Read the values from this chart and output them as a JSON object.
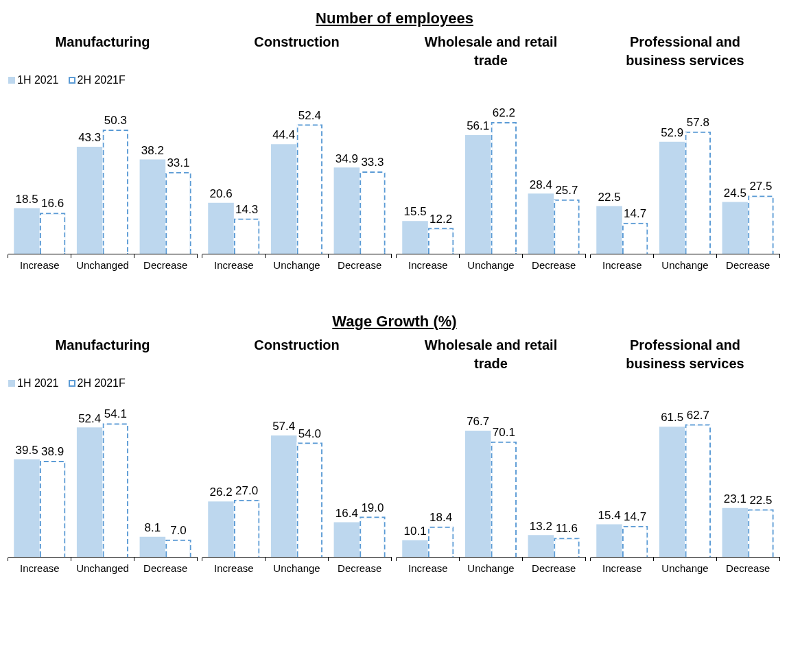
{
  "chart_data": [
    {
      "type": "other",
      "title": "Number of employees"
    },
    {
      "type": "bar",
      "title": "Manufacturing",
      "categories": [
        "Increase",
        "Unchanged",
        "Decrease"
      ],
      "legend": "top left",
      "series": [
        {
          "name": "1H 2021",
          "color": "#bdd7ee",
          "values": [
            18.5,
            43.3,
            38.2
          ],
          "value_labels": [
            "18.5",
            "43.3",
            "38.2"
          ]
        },
        {
          "name": "2H 2021F",
          "color": "#5b9bd5",
          "line_style": "dashed",
          "values": [
            16.6,
            50.3,
            33.1
          ],
          "value_labels": [
            "16.6",
            "50.3",
            "33.1"
          ]
        }
      ]
    },
    {
      "type": "bar",
      "title": "Construction",
      "categories": [
        "Increase",
        "Unchange",
        "Decrease"
      ],
      "series": [
        {
          "color": "#bdd7ee",
          "values": [
            20.6,
            44.4,
            34.9
          ],
          "value_labels": [
            "20.6",
            "44.4",
            "34.9"
          ]
        },
        {
          "color": "#5b9bd5",
          "line_style": "dashed",
          "values": [
            14.3,
            52.4,
            33.3
          ],
          "value_labels": [
            "14.3",
            "52.4",
            "33.3"
          ]
        }
      ]
    },
    {
      "type": "bar",
      "title": "Wholesale and retail trade",
      "categories": [
        "Increase",
        "Unchange",
        "Decrease"
      ],
      "series": [
        {
          "color": "#bdd7ee",
          "values": [
            15.5,
            56.1,
            28.4
          ],
          "value_labels": [
            "15.5",
            "56.1",
            "28.4"
          ]
        },
        {
          "color": "#5b9bd5",
          "line_style": "dashed",
          "values": [
            12.2,
            62.2,
            25.7
          ],
          "value_labels": [
            "12.2",
            "62.2",
            "25.7"
          ]
        }
      ]
    },
    {
      "type": "bar",
      "title": "Professional and business services",
      "categories": [
        "Increase",
        "Unchange",
        "Decrease"
      ],
      "series": [
        {
          "color": "#bdd7ee",
          "values": [
            22.5,
            52.9,
            24.5
          ],
          "value_labels": [
            "22.5",
            "52.9",
            "24.5"
          ]
        },
        {
          "color": "#5b9bd5",
          "line_style": "dashed",
          "values": [
            14.7,
            57.8,
            27.5
          ],
          "value_labels": [
            "14.7",
            "57.8",
            "27.5"
          ]
        }
      ]
    },
    {
      "type": "other",
      "title": "Wage Growth (%)"
    },
    {
      "type": "bar",
      "title": "Manufacturing",
      "categories": [
        "Increase",
        "Unchanged",
        "Decrease"
      ],
      "legend": "top left",
      "series": [
        {
          "name": "1H 2021",
          "color": "#bdd7ee",
          "values": [
            39.5,
            52.4,
            8.1
          ],
          "value_labels": [
            "39.5",
            "52.4",
            "8.1"
          ]
        },
        {
          "name": "2H 2021F",
          "color": "#5b9bd5",
          "line_style": "dashed",
          "values": [
            38.9,
            54.1,
            7.0
          ],
          "value_labels": [
            "38.9",
            "54.1",
            "7.0"
          ]
        }
      ]
    },
    {
      "type": "bar",
      "title": "Construction",
      "categories": [
        "Increase",
        "Unchange",
        "Decrease"
      ],
      "series": [
        {
          "color": "#bdd7ee",
          "values": [
            26.2,
            57.4,
            16.4
          ],
          "value_labels": [
            "26.2",
            "57.4",
            "16.4"
          ]
        },
        {
          "color": "#5b9bd5",
          "line_style": "dashed",
          "values": [
            27.0,
            54.0,
            19.0
          ],
          "value_labels": [
            "27.0",
            "54.0",
            "19.0"
          ]
        }
      ]
    },
    {
      "type": "bar",
      "title": "Wholesale and retail trade",
      "categories": [
        "Increase",
        "Unchange",
        "Decrease"
      ],
      "series": [
        {
          "color": "#bdd7ee",
          "values": [
            10.1,
            76.7,
            13.2
          ],
          "value_labels": [
            "10.1",
            "76.7",
            "13.2"
          ]
        },
        {
          "color": "#5b9bd5",
          "line_style": "dashed",
          "values": [
            18.4,
            70.1,
            11.6
          ],
          "value_labels": [
            "18.4",
            "70.1",
            "11.6"
          ]
        }
      ]
    },
    {
      "type": "bar",
      "title": "Professional and business services",
      "categories": [
        "Increase",
        "Unchange",
        "Decrease"
      ],
      "series": [
        {
          "color": "#bdd7ee",
          "values": [
            15.4,
            61.5,
            23.1
          ],
          "value_labels": [
            "15.4",
            "61.5",
            "23.1"
          ]
        },
        {
          "color": "#5b9bd5",
          "line_style": "dashed",
          "values": [
            14.7,
            62.7,
            22.5
          ],
          "value_labels": [
            "14.7",
            "62.7",
            "22.5"
          ]
        }
      ]
    }
  ]
}
